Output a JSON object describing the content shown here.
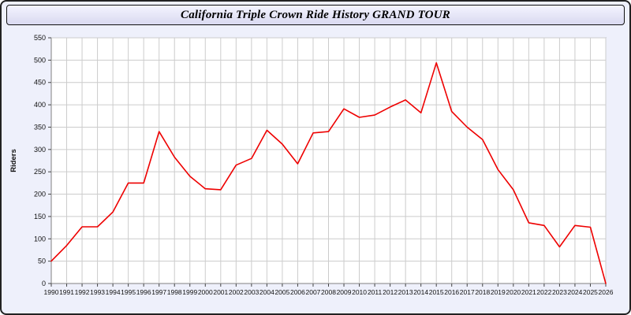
{
  "chart_data": {
    "type": "line",
    "title": "California Triple Crown Ride History GRAND TOUR",
    "xlabel": "",
    "ylabel": "Riders",
    "ylim": [
      0,
      550
    ],
    "ytick_step": 50,
    "grid": true,
    "legend_position": "none",
    "line_color": "#ee0000",
    "plot_bg": "#ffffff",
    "grid_color": "#cccccc",
    "axis_color": "#808080",
    "categories": [
      "1990",
      "1991",
      "1992",
      "1993",
      "1994",
      "1995",
      "1996",
      "1997",
      "1998",
      "1999",
      "2000",
      "2001",
      "2002",
      "2003",
      "2004",
      "2005",
      "2006",
      "2007",
      "2008",
      "2009",
      "2010",
      "2011",
      "2012",
      "2013",
      "2014",
      "2015",
      "2016",
      "2017",
      "2018",
      "2019",
      "2020",
      "2021",
      "2022",
      "2023",
      "2024",
      "2025",
      "2026"
    ],
    "values": [
      50,
      85,
      127,
      127,
      160,
      225,
      225,
      340,
      283,
      240,
      212,
      210,
      265,
      280,
      343,
      312,
      268,
      337,
      340,
      391,
      372,
      377,
      395,
      411,
      382,
      494,
      385,
      350,
      322,
      255,
      210,
      136,
      130,
      82,
      130,
      126,
      0
    ]
  }
}
